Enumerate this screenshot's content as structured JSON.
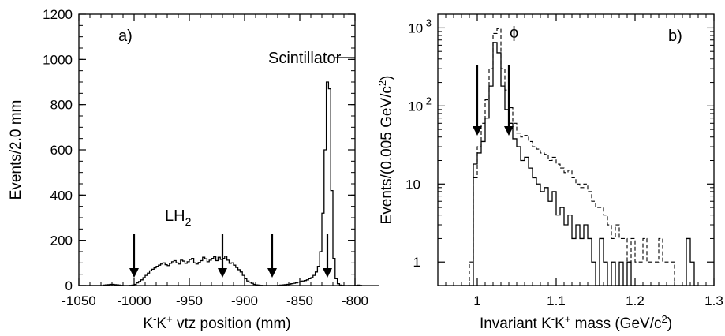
{
  "chart_data": [
    {
      "type": "histogram",
      "panel_label": "a)",
      "xlabel": {
        "pre": "K",
        "sup1": "-",
        "mid": "K",
        "sup2": "+",
        "post": " vtz position  (mm)"
      },
      "ylabel": "Events/2.0 mm",
      "xlim": [
        -1050,
        -800
      ],
      "ylim": [
        0,
        1200
      ],
      "xticks": [
        -1050,
        -1000,
        -950,
        -900,
        -850,
        -800
      ],
      "xtick_labels": [
        "-1050",
        "-1000",
        "-950",
        "-900",
        "-850",
        "-800"
      ],
      "yticks": [
        0,
        200,
        400,
        600,
        800,
        1000,
        1200
      ],
      "ytick_labels": [
        "0",
        "200",
        "400",
        "600",
        "800",
        "1000",
        "1200"
      ],
      "annotations": {
        "lh2": {
          "base": "LH",
          "sub": "2"
        },
        "scintillator": "Scintillator"
      },
      "cut_arrows_x": [
        -1000,
        -920,
        -875,
        -825
      ],
      "series": [
        {
          "style": "solid",
          "bin_width": 2,
          "x_start": -1050,
          "values": [
            0,
            0,
            0,
            0,
            0,
            0,
            0,
            0,
            0,
            0,
            0,
            2,
            3,
            4,
            5,
            5,
            4,
            3,
            2,
            1,
            0,
            0,
            0,
            1,
            2,
            5,
            12,
            18,
            25,
            35,
            45,
            55,
            65,
            72,
            78,
            85,
            90,
            95,
            100,
            92,
            88,
            98,
            105,
            110,
            100,
            95,
            112,
            108,
            98,
            105,
            115,
            120,
            100,
            95,
            102,
            110,
            125,
            118,
            105,
            112,
            120,
            128,
            110,
            125,
            115,
            120,
            130,
            112,
            98,
            100,
            90,
            80,
            70,
            60,
            45,
            30,
            20,
            15,
            10,
            5,
            3,
            2,
            1,
            0,
            0,
            0,
            0,
            0,
            0,
            0,
            1,
            2,
            3,
            4,
            5,
            6,
            8,
            10,
            12,
            15,
            18,
            20,
            22,
            25,
            30,
            35,
            45,
            60,
            85,
            150,
            320,
            600,
            900,
            870,
            420,
            120,
            30,
            8,
            2,
            1,
            0,
            0,
            0,
            0,
            0,
            1,
            2,
            1,
            0,
            0,
            0,
            0,
            0,
            0,
            0,
            0
          ]
        }
      ]
    },
    {
      "type": "histogram",
      "panel_label": "b)",
      "peak_label": "ϕ",
      "xlabel": {
        "pre": "Invariant K",
        "sup1": "-",
        "mid": "K",
        "sup2": "+",
        "post": " mass  (GeV/c",
        "sup3": "2",
        "end": ")"
      },
      "ylabel": {
        "pre": "Events/(0.005 GeV/c",
        "sup": "2",
        "end": ")"
      },
      "xlim": [
        0.95,
        1.3
      ],
      "ylim": [
        0.5,
        1500
      ],
      "yscale": "log",
      "xticks": [
        1.0,
        1.1,
        1.2,
        1.3
      ],
      "xtick_labels": [
        "1",
        "1.1",
        "1.2",
        "1.3"
      ],
      "yticks": [
        1,
        10,
        100,
        1000
      ],
      "ytick_labels": [
        {
          "base": "1",
          "exp": ""
        },
        {
          "base": "10",
          "exp": ""
        },
        {
          "base": "10",
          "exp": "2"
        },
        {
          "base": "10",
          "exp": "3"
        }
      ],
      "cut_arrows_x": [
        1.0,
        1.04
      ],
      "series": [
        {
          "style": "solid",
          "bin_width": 0.005,
          "x_start": 0.98,
          "values": [
            0,
            0,
            0,
            18,
            25,
            35,
            70,
            180,
            650,
            480,
            180,
            90,
            60,
            38,
            30,
            20,
            22,
            16,
            12,
            10,
            8,
            9,
            6,
            8,
            4,
            5,
            3,
            4,
            2,
            3,
            2,
            3,
            2,
            1,
            0,
            2,
            1,
            0,
            1,
            0,
            1,
            0,
            1,
            0,
            0,
            0,
            0,
            0,
            0,
            0,
            0,
            0,
            0,
            0,
            0,
            0,
            0,
            2,
            1,
            0
          ]
        },
        {
          "style": "dashed",
          "bin_width": 0.005,
          "x_start": 0.98,
          "values": [
            0,
            0,
            1,
            12,
            30,
            60,
            120,
            300,
            850,
            980,
            300,
            160,
            95,
            60,
            45,
            40,
            42,
            35,
            30,
            28,
            25,
            24,
            20,
            22,
            18,
            16,
            14,
            15,
            12,
            10,
            9,
            10,
            8,
            6,
            5,
            5,
            4,
            3,
            2,
            3,
            2,
            2,
            1,
            2,
            1,
            1,
            2,
            1,
            1,
            1,
            2,
            1,
            1,
            1,
            0,
            0,
            0,
            0,
            0,
            0
          ]
        }
      ]
    }
  ]
}
